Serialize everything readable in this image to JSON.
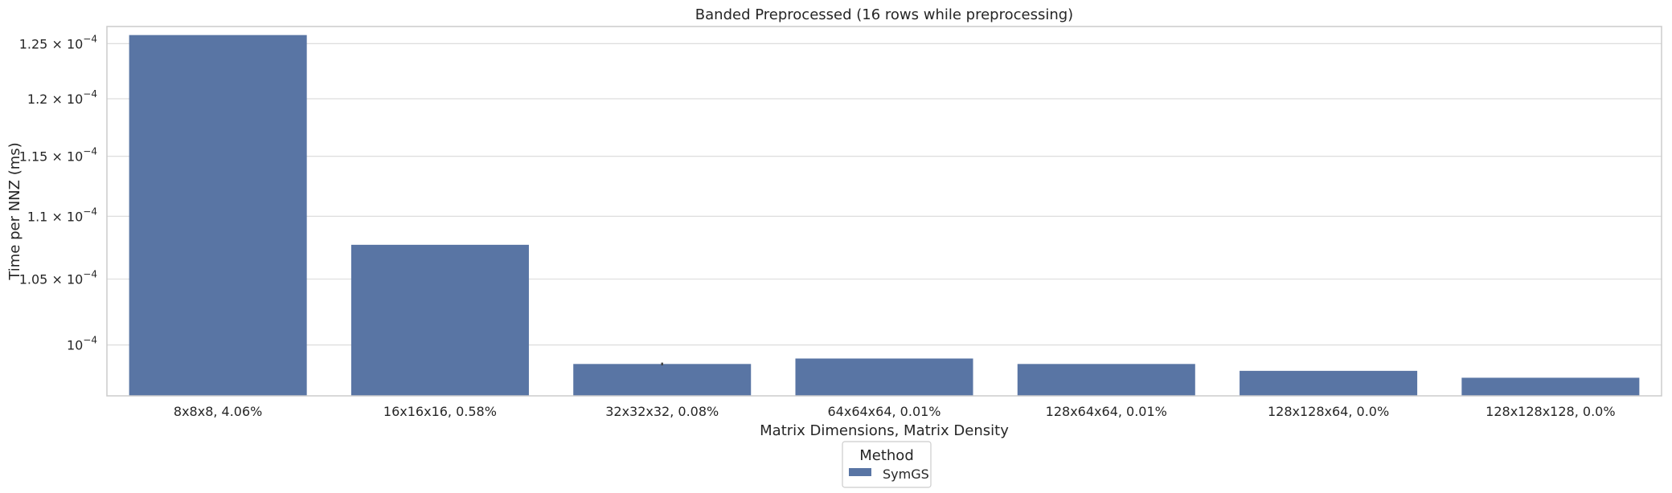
{
  "chart_data": {
    "type": "bar",
    "title": "Banded Preprocessed (16 rows while preprocessing)",
    "xlabel": "Matrix Dimensions, Matrix Density",
    "ylabel": "Time per NNZ (ms)",
    "yscale": "log",
    "ylim": [
      9.63e-05,
      0.0001266
    ],
    "yticks": [
      {
        "value": 0.0001,
        "mantissa": "",
        "exponent": "−4"
      },
      {
        "value": 0.000105,
        "mantissa": "1.05",
        "exponent": "−4"
      },
      {
        "value": 0.00011,
        "mantissa": "1.1",
        "exponent": "−4"
      },
      {
        "value": 0.000115,
        "mantissa": "1.15",
        "exponent": "−4"
      },
      {
        "value": 0.00012,
        "mantissa": "1.2",
        "exponent": "−4"
      },
      {
        "value": 0.000125,
        "mantissa": "1.25",
        "exponent": "−4"
      }
    ],
    "grid": "horizontal",
    "categories": [
      "8x8x8, 4.06%",
      "16x16x16, 0.58%",
      "32x32x32, 0.08%",
      "64x64x64, 0.01%",
      "128x64x64, 0.01%",
      "128x128x64, 0.0%",
      "128x128x128, 0.0%"
    ],
    "series": [
      {
        "name": "SymGS",
        "color": "#5975a4",
        "values": [
          0.0001258,
          0.0001077,
          9.86e-05,
          9.9e-05,
          9.86e-05,
          9.81e-05,
          9.76e-05
        ],
        "error": [
          0,
          0,
          1e-07,
          0,
          0,
          0,
          0
        ]
      }
    ],
    "legend": {
      "title": "Method",
      "placement": "bottom-center"
    }
  }
}
